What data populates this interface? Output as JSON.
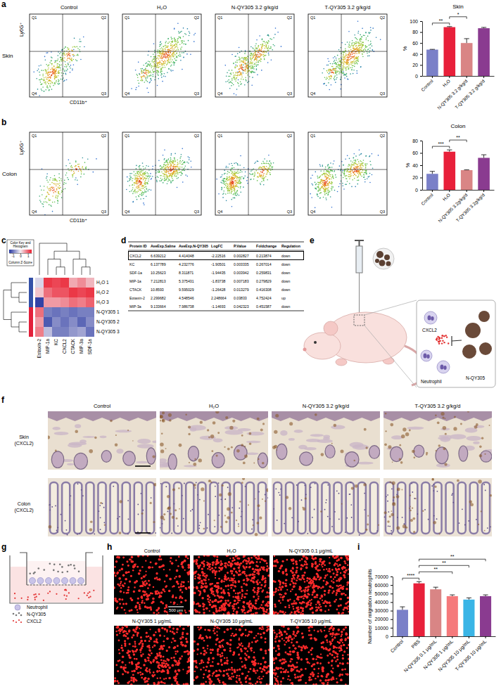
{
  "panel_letters": [
    "a",
    "b",
    "c",
    "d",
    "e",
    "f",
    "g",
    "h",
    "i"
  ],
  "flow": {
    "columns": [
      "Control",
      "H₂O",
      "N-QY305 3.2 g/kg/d",
      "T-QY305 3.2 g/kg/d"
    ],
    "rows": [
      "Skin",
      "Colon"
    ],
    "quadrants": [
      "Q1",
      "Q2",
      "Q3",
      "Q4"
    ],
    "x_label": "CD11b⁺",
    "y_label": "Ly6G⁺"
  },
  "chart_data": [
    {
      "type": "bar",
      "title": "Skin",
      "categories": [
        "Control",
        "H₂O",
        "N-QY305 3.2 g/kg/d",
        "T-QY305 3.2 g/kg/d"
      ],
      "values": [
        48,
        89,
        60,
        87
      ],
      "errors": [
        0.5,
        1,
        8,
        1.5
      ],
      "colors": [
        "#7a80c8",
        "#e8203a",
        "#d98585",
        "#8a3b90"
      ],
      "ylabel": "%",
      "ylim": [
        0,
        100
      ],
      "yticks": [
        0,
        20,
        40,
        60,
        80,
        100
      ],
      "significance": [
        {
          "pair": [
            0,
            1
          ],
          "label": "**"
        },
        {
          "pair": [
            1,
            2
          ],
          "label": "*"
        }
      ]
    },
    {
      "type": "bar",
      "title": "Colon",
      "categories": [
        "Control",
        "H₂O",
        "N-QY305 3.2g/kg/d",
        "T-QY305 3.2g/kg/d"
      ],
      "values": [
        26,
        62,
        32,
        52
      ],
      "errors": [
        4,
        3,
        0.5,
        5
      ],
      "colors": [
        "#7a80c8",
        "#e8203a",
        "#d98585",
        "#8a3b90"
      ],
      "ylabel": "%",
      "ylim": [
        0,
        80
      ],
      "yticks": [
        0,
        20,
        40,
        60,
        80
      ],
      "significance": [
        {
          "pair": [
            0,
            1
          ],
          "label": "***"
        },
        {
          "pair": [
            1,
            2
          ],
          "label": "**"
        }
      ]
    },
    {
      "type": "heatmap",
      "title": "Color Key and Histogram",
      "colorbar_label": "Column Z-Score",
      "categories": [
        "Eotaxin-2",
        "MIP-1a",
        "KC",
        "CXCL2",
        "CTACK",
        "MIP-3a",
        "SDF-1a"
      ],
      "row_labels": [
        "H₂O 1",
        "H₂O 2",
        "H₂O 3",
        "N-QY305 1",
        "N-QY305 2",
        "N-QY305 3"
      ],
      "cells": [
        [
          -0.2,
          1.3,
          1.2,
          1.3,
          0.5,
          0.7,
          0.4
        ],
        [
          0.3,
          0.9,
          1.1,
          1.1,
          1.3,
          1.2,
          1.3
        ],
        [
          -1.4,
          0.6,
          0.6,
          0.7,
          0.9,
          0.8,
          1.0
        ],
        [
          0.9,
          -0.9,
          -1.0,
          -0.9,
          -1.0,
          -0.9,
          -0.9
        ],
        [
          0.6,
          -1.2,
          -0.8,
          -1.0,
          -0.8,
          -1.1,
          -0.8
        ],
        [
          0.8,
          -0.4,
          -0.9,
          -0.9,
          -0.7,
          -0.6,
          -1.0
        ]
      ],
      "colors": [
        "#3451a8",
        "#3451a8",
        "#3451a8",
        "#e3203a",
        "#e3203a",
        "#e3203a"
      ],
      "colorbar_range": [
        -1.5,
        1.5
      ],
      "colorbar_ticks": [
        -1,
        0,
        1
      ]
    },
    {
      "type": "bar",
      "categories": [
        "Control",
        "PBS",
        "N-QY305 0.1 μg/mL",
        "N-QY305 1 μg/mL",
        "N-QY305 10 μg/mL",
        "T-QY305 10 μg/mL"
      ],
      "values": [
        31000,
        62000,
        55000,
        47000,
        43000,
        47000
      ],
      "errors": [
        3500,
        2000,
        2500,
        1500,
        2000,
        1500
      ],
      "colors": [
        "#7a80c8",
        "#e8203a",
        "#d98585",
        "#f5797b",
        "#3ab5e6",
        "#8a3b90"
      ],
      "ylabel": "Number of migration neutrophils",
      "ylim": [
        0,
        70000
      ],
      "yticks": [
        0,
        10000,
        20000,
        30000,
        40000,
        50000,
        60000,
        70000
      ],
      "significance": [
        {
          "pair": [
            0,
            1
          ],
          "label": "****"
        },
        {
          "pair": [
            1,
            3
          ],
          "label": "**"
        },
        {
          "pair": [
            1,
            4
          ],
          "label": "**"
        },
        {
          "pair": [
            1,
            5
          ],
          "label": "**"
        }
      ]
    }
  ],
  "table": {
    "columns": [
      "Protein ID",
      "AveExp.Saline",
      "AveExp.N-QY305",
      "LogFC",
      "P.Value",
      "Foldchange",
      "Regulation"
    ],
    "rows": [
      [
        "CXCL2",
        "6.639212",
        "4.414048",
        "-2.22516",
        "0.002827",
        "0.213874",
        "down"
      ],
      [
        "KC",
        "6.137789",
        "4.232776",
        "-1.90501",
        "0.003335",
        "0.267014",
        "down"
      ],
      [
        "SDF-1a",
        "10.25623",
        "8.311871",
        "-1.94435",
        "0.003942",
        "0.259831",
        "down"
      ],
      [
        "MIP-1a",
        "7.212813",
        "5.375431",
        "-1.83738",
        "0.007183",
        "0.279829",
        "down"
      ],
      [
        "CTACK",
        "10.8593",
        "9.595029",
        "-1.26428",
        "0.013279",
        "0.416308",
        "down"
      ],
      [
        "Eotaxin-2",
        "2.299682",
        "4.548546",
        "2.248664",
        "0.03833",
        "4.752424",
        "up"
      ],
      [
        "MIP-3a",
        "9.133664",
        "7.986738",
        "-1.14693",
        "0.042323",
        "0.451587",
        "down"
      ]
    ]
  },
  "diagram_e": {
    "labels": [
      "CXCL2",
      "N-QY305",
      "Neutrophil"
    ]
  },
  "ihc": {
    "columns": [
      "Control",
      "H₂O",
      "N-QY305 3.2 g/kg/d",
      "T-QY305 3.2 g/kg/d"
    ],
    "rows": [
      "Skin (CXCL2)",
      "Colon (CXCL2)"
    ]
  },
  "transwell": {
    "legend": [
      "Neutrophil",
      "N-QY305",
      "CXCL2"
    ]
  },
  "fluorescence": {
    "labels": [
      "Control",
      "H₂O",
      "N-QY305 0.1 μg/mL",
      "N-QY305 1 μg/mL",
      "N-QY305 10 μg/mL",
      "T-QY305 10 μg/mL"
    ],
    "scale_bar": "500 μm"
  }
}
